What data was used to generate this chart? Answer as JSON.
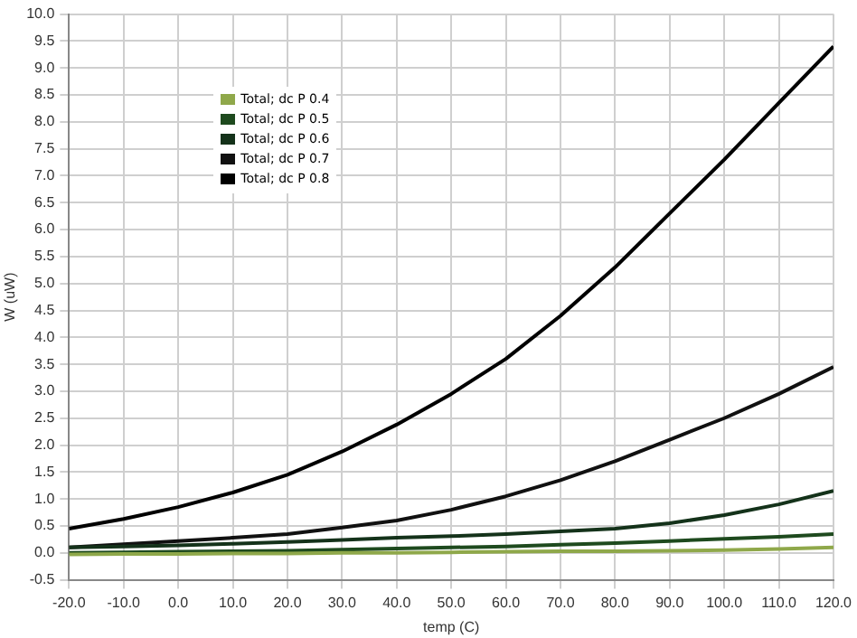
{
  "chart_data": {
    "type": "line",
    "xlabel": "temp (C)",
    "ylabel": "W (uW)",
    "x": [
      -20,
      -10,
      0,
      10,
      20,
      30,
      40,
      50,
      60,
      70,
      80,
      90,
      100,
      110,
      120
    ],
    "series": [
      {
        "name": "Total; dc P 0.4",
        "color": "#8fa84a",
        "values": [
          -0.03,
          -0.02,
          -0.02,
          -0.01,
          -0.01,
          0,
          0,
          0.01,
          0.02,
          0.03,
          0.03,
          0.04,
          0.05,
          0.07,
          0.1
        ]
      },
      {
        "name": "Total; dc P 0.5",
        "color": "#1e4a1e",
        "values": [
          0,
          0.01,
          0.02,
          0.03,
          0.04,
          0.06,
          0.08,
          0.1,
          0.12,
          0.15,
          0.18,
          0.22,
          0.26,
          0.3,
          0.35
        ]
      },
      {
        "name": "Total; dc P 0.6",
        "color": "#14321a",
        "values": [
          0.1,
          0.12,
          0.14,
          0.17,
          0.2,
          0.24,
          0.28,
          0.31,
          0.35,
          0.4,
          0.45,
          0.55,
          0.7,
          0.9,
          1.15
        ]
      },
      {
        "name": "Total; dc P 0.7",
        "color": "#111111",
        "values": [
          0.1,
          0.16,
          0.22,
          0.28,
          0.35,
          0.47,
          0.6,
          0.8,
          1.05,
          1.35,
          1.7,
          2.1,
          2.5,
          2.95,
          3.45
        ]
      },
      {
        "name": "Total; dc P 0.8",
        "color": "#000000",
        "values": [
          0.45,
          0.63,
          0.85,
          1.12,
          1.45,
          1.88,
          2.38,
          2.95,
          3.6,
          4.4,
          5.3,
          6.3,
          7.3,
          8.35,
          9.4
        ]
      }
    ],
    "xlim": [
      -20,
      120
    ],
    "xticks": [
      {
        "value": -20,
        "label": "-20.0"
      },
      {
        "value": -10,
        "label": "-10.0"
      },
      {
        "value": 0,
        "label": "0.0"
      },
      {
        "value": 10,
        "label": "10.0"
      },
      {
        "value": 20,
        "label": "20.0"
      },
      {
        "value": 30,
        "label": "30.0"
      },
      {
        "value": 40,
        "label": "40.0"
      },
      {
        "value": 50,
        "label": "50.0"
      },
      {
        "value": 60,
        "label": "60.0"
      },
      {
        "value": 70,
        "label": "70.0"
      },
      {
        "value": 80,
        "label": "80.0"
      },
      {
        "value": 90,
        "label": "90.0"
      },
      {
        "value": 100,
        "label": "100.0"
      },
      {
        "value": 110,
        "label": "110.0"
      },
      {
        "value": 120,
        "label": "120.0"
      }
    ],
    "ylim": [
      -0.5,
      10
    ],
    "yticks": [
      {
        "value": -0.5,
        "label": "-0.5"
      },
      {
        "value": 0,
        "label": "0.0"
      },
      {
        "value": 0.5,
        "label": "0.5"
      },
      {
        "value": 1,
        "label": "1.0"
      },
      {
        "value": 1.5,
        "label": "1.5"
      },
      {
        "value": 2,
        "label": "2.0"
      },
      {
        "value": 2.5,
        "label": "2.5"
      },
      {
        "value": 3,
        "label": "3.0"
      },
      {
        "value": 3.5,
        "label": "3.5"
      },
      {
        "value": 4,
        "label": "4.0"
      },
      {
        "value": 4.5,
        "label": "4.5"
      },
      {
        "value": 5,
        "label": "5.0"
      },
      {
        "value": 5.5,
        "label": "5.5"
      },
      {
        "value": 6,
        "label": "6.0"
      },
      {
        "value": 6.5,
        "label": "6.5"
      },
      {
        "value": 7,
        "label": "7.0"
      },
      {
        "value": 7.5,
        "label": "7.5"
      },
      {
        "value": 8,
        "label": "8.0"
      },
      {
        "value": 8.5,
        "label": "8.5"
      },
      {
        "value": 9,
        "label": "9.0"
      },
      {
        "value": 9.5,
        "label": "9.5"
      },
      {
        "value": 10,
        "label": "10.0"
      }
    ],
    "grid": true,
    "legend": "top left",
    "marker": "none",
    "line_style": "solid"
  }
}
